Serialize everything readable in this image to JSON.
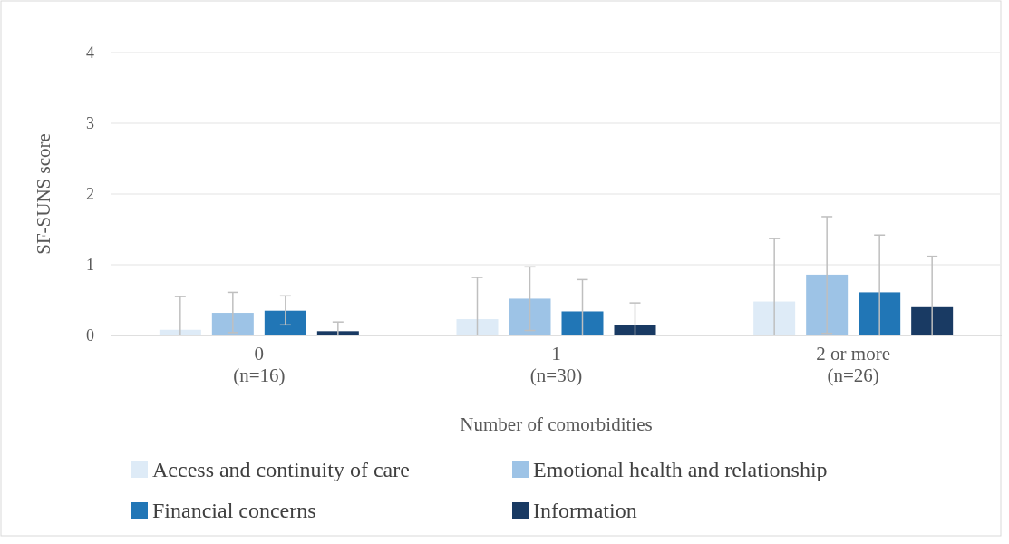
{
  "chart_data": {
    "type": "bar",
    "xlabel": "Number of comorbidities",
    "ylabel": "SF-SUNS score",
    "categories": [
      "0\n(n=16)",
      "1\n(n=30)",
      "2 or more\n(n=26)"
    ],
    "series": [
      {
        "name": "Access and continuity of care",
        "color": "#deebf7",
        "values": [
          0.08,
          0.23,
          0.48
        ],
        "errors": [
          [
            0,
            0.55
          ],
          [
            0,
            0.82
          ],
          [
            0,
            1.37
          ]
        ]
      },
      {
        "name": "Emotional health and relationship",
        "color": "#9dc3e6",
        "values": [
          0.32,
          0.52,
          0.86
        ],
        "errors": [
          [
            0.04,
            0.61
          ],
          [
            0.07,
            0.97
          ],
          [
            0.03,
            1.68
          ]
        ]
      },
      {
        "name": "Financial concerns",
        "color": "#2176b6",
        "values": [
          0.35,
          0.34,
          0.61
        ],
        "errors": [
          [
            0.15,
            0.56
          ],
          [
            0,
            0.79
          ],
          [
            0,
            1.42
          ]
        ]
      },
      {
        "name": "Information",
        "color": "#193a63",
        "values": [
          0.06,
          0.15,
          0.4
        ],
        "errors": [
          [
            0,
            0.19
          ],
          [
            0,
            0.46
          ],
          [
            0,
            1.12
          ]
        ]
      }
    ],
    "ylim": [
      0,
      4
    ],
    "yticks": [
      0,
      1,
      2,
      3,
      4
    ],
    "grid": "y",
    "legend": "bottom"
  }
}
